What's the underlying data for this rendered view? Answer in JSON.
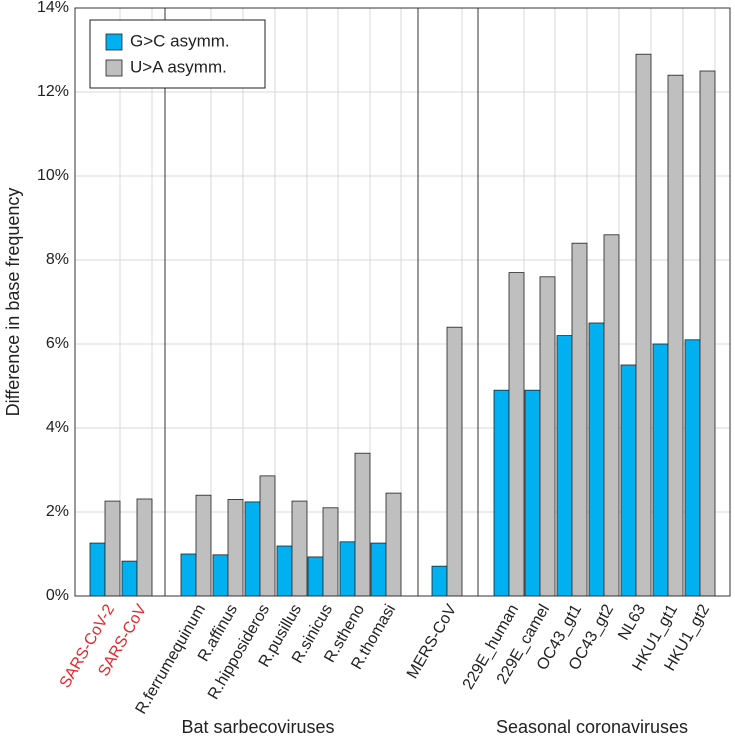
{
  "chart_data": {
    "type": "bar",
    "y_label": "Difference in base frequency",
    "categories": [
      "SARS-CoV-2",
      "SARS-CoV",
      "R.ferrumequinum",
      "R.affinus",
      "R.hipposideros",
      "R.pusillus",
      "R.sinicus",
      "R.stheno",
      "R.thomasi",
      "MERS-CoV",
      "229E_human",
      "229E_camel",
      "OC43_gt1",
      "OC43_gt2",
      "NL63",
      "HKU1_gt1",
      "HKU1_gt2"
    ],
    "category_colors": [
      "#e8262b",
      "#e8262b",
      "#222222",
      "#222222",
      "#222222",
      "#222222",
      "#222222",
      "#222222",
      "#222222",
      "#222222",
      "#222222",
      "#222222",
      "#222222",
      "#222222",
      "#222222",
      "#222222",
      "#222222"
    ],
    "group_labels": [
      "Bat sarbecoviruses",
      "Seasonal coronaviruses"
    ],
    "series": [
      {
        "name": "G>C asymm.",
        "color": "#00b0f0",
        "values": [
          1.26,
          0.83,
          1.0,
          0.98,
          2.24,
          1.19,
          0.93,
          1.29,
          1.26,
          0.71,
          4.9,
          4.9,
          6.2,
          6.5,
          5.5,
          6.0,
          6.1
        ]
      },
      {
        "name": "U>A asymm.",
        "color": "#bfbfbf",
        "values": [
          2.26,
          2.31,
          2.4,
          2.3,
          2.86,
          2.26,
          2.1,
          3.4,
          2.45,
          6.4,
          7.7,
          7.6,
          8.4,
          8.6,
          12.9,
          12.4,
          12.5
        ]
      }
    ],
    "ylim": [
      0,
      14
    ],
    "yticks": [
      {
        "value": 0,
        "label": "0%"
      },
      {
        "value": 2,
        "label": "2%"
      },
      {
        "value": 4,
        "label": "4%"
      },
      {
        "value": 6,
        "label": "6%"
      },
      {
        "value": 8,
        "label": "8%"
      },
      {
        "value": 10,
        "label": "10%"
      },
      {
        "value": 12,
        "label": "12%"
      },
      {
        "value": 14,
        "label": "14%"
      }
    ],
    "grid": true,
    "legend": "upper left"
  }
}
